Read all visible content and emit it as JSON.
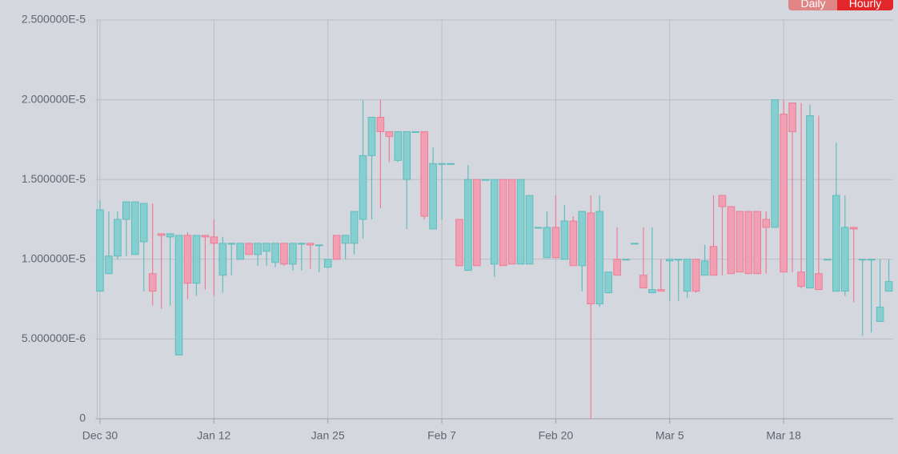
{
  "buttons": [
    "Daily",
    "Hourly"
  ],
  "chart_data": {
    "type": "candlestick",
    "up_color": "#86cfd0",
    "down_color": "#f0a0b2",
    "grid": true,
    "ylim": [
      0,
      2.5e-05
    ],
    "yticks": [
      0,
      {
        "value": 5e-06,
        "label": "5.000000E-6"
      },
      {
        "value": 1e-05,
        "label": "1.000000E-5"
      },
      {
        "value": 1.5e-05,
        "label": "1.500000E-5"
      },
      {
        "value": 2e-05,
        "label": "2.000000E-5"
      },
      {
        "value": 2.5e-05,
        "label": "2.500000E-5"
      }
    ],
    "categories": [
      "Dec 30",
      null,
      null,
      null,
      null,
      null,
      null,
      null,
      null,
      null,
      null,
      null,
      null,
      "Jan 12",
      null,
      null,
      null,
      null,
      null,
      null,
      null,
      null,
      null,
      null,
      null,
      null,
      "Jan 25",
      null,
      null,
      null,
      null,
      null,
      null,
      null,
      null,
      null,
      null,
      null,
      null,
      "Feb 7",
      null,
      null,
      null,
      null,
      null,
      null,
      null,
      null,
      null,
      null,
      null,
      null,
      "Feb 20",
      null,
      null,
      null,
      null,
      null,
      null,
      null,
      null,
      null,
      null,
      null,
      null,
      "Mar 5",
      null,
      null,
      null,
      null,
      null,
      null,
      null,
      null,
      null,
      null,
      null,
      null,
      "Mar 18",
      null,
      null,
      null,
      null,
      null,
      null,
      null,
      null,
      null,
      null,
      null,
      null
    ],
    "open": [
      8e-06,
      9.1e-06,
      1.02e-05,
      1.25e-05,
      1.03e-05,
      1.11e-05,
      9.1e-06,
      1.16e-05,
      1.14e-05,
      4e-06,
      1.15e-05,
      8.5e-06,
      1.15e-05,
      1.14e-05,
      9e-06,
      1.1e-05,
      1e-05,
      1.1e-05,
      1.03e-05,
      1.05e-05,
      9.8e-06,
      1.1e-05,
      9.7e-06,
      1.1e-05,
      1.1e-05,
      1.09e-05,
      9.5e-06,
      1.15e-05,
      1.1e-05,
      1.1e-05,
      1.25e-05,
      1.65e-05,
      1.89e-05,
      1.8e-05,
      1.62e-05,
      1.5e-05,
      1.8e-05,
      1.8e-05,
      1.19e-05,
      1.6e-05,
      1.6e-05,
      1.25e-05,
      9.3e-06,
      1.5e-05,
      1.5e-05,
      9.7e-06,
      1.5e-05,
      1.5e-05,
      9.7e-06,
      9.7e-06,
      1.2e-05,
      1.01e-05,
      1.2e-05,
      1e-05,
      1.24e-05,
      9.6e-06,
      1.29e-05,
      7.2e-06,
      7.9e-06,
      1e-05,
      1e-05,
      1.1e-05,
      9e-06,
      7.9e-06,
      8.1e-06,
      9.9e-06,
      1e-05,
      8e-06,
      1e-05,
      9e-06,
      1.08e-05,
      1.4e-05,
      1.33e-05,
      1.3e-05,
      1.3e-05,
      1.3e-05,
      1.25e-05,
      1.2e-05,
      1.91e-05,
      1.98e-05,
      9.2e-06,
      8.2e-06,
      9.1e-06,
      1e-05,
      8e-06,
      8e-06,
      1.2e-05,
      1e-05,
      1e-05,
      6.1e-06,
      8e-06
    ],
    "high": [
      1.37e-05,
      1.3e-05,
      1.3e-05,
      1.36e-05,
      1.36e-05,
      1.35e-05,
      1.35e-05,
      1.16e-05,
      1.16e-05,
      1.15e-05,
      1.17e-05,
      1.15e-05,
      1.15e-05,
      1.25e-05,
      1.14e-05,
      1.1e-05,
      1.1e-05,
      1.1e-05,
      1.1e-05,
      1.1e-05,
      1.1e-05,
      1.1e-05,
      1.1e-05,
      1.1e-05,
      1.1e-05,
      1.09e-05,
      1e-05,
      1.15e-05,
      1.15e-05,
      1.3e-05,
      2e-05,
      1.89e-05,
      2e-05,
      1.8e-05,
      1.8e-05,
      1.8e-05,
      1.8e-05,
      1.8e-05,
      1.7e-05,
      1.6e-05,
      1.6e-05,
      1.25e-05,
      1.59e-05,
      1.5e-05,
      1.5e-05,
      1.5e-05,
      1.5e-05,
      1.5e-05,
      1.5e-05,
      1.4e-05,
      1.2e-05,
      1.3e-05,
      1.4e-05,
      1.34e-05,
      1.27e-05,
      1.3e-05,
      1.4e-05,
      1.4e-05,
      9.2e-06,
      1.2e-05,
      1e-05,
      1.1e-05,
      1.2e-05,
      1.2e-05,
      1e-05,
      1e-05,
      1e-05,
      1e-05,
      1e-05,
      1.09e-05,
      1.4e-05,
      1.4e-05,
      1.33e-05,
      1.3e-05,
      1.3e-05,
      1.3e-05,
      1.3e-05,
      2e-05,
      2e-05,
      1.98e-05,
      1.98e-05,
      1.97e-05,
      1.9e-05,
      1e-05,
      1.73e-05,
      1.4e-05,
      1.2e-05,
      1e-05,
      1e-05,
      1e-05,
      1e-05
    ],
    "low": [
      8e-06,
      9.1e-06,
      1e-05,
      1.02e-05,
      1.03e-05,
      8e-06,
      7.1e-06,
      6.9e-06,
      7.1e-06,
      4e-06,
      7.5e-06,
      7.7e-06,
      8.1e-06,
      7.7e-06,
      7.9e-06,
      9e-06,
      1e-05,
      1.03e-05,
      9.6e-06,
      9.6e-06,
      9.5e-06,
      9.6e-06,
      9.3e-06,
      9.3e-06,
      9.4e-06,
      9.2e-06,
      9.5e-06,
      1e-05,
      1e-05,
      1.03e-05,
      1.13e-05,
      1.25e-05,
      1.32e-05,
      1.61e-05,
      1.61e-05,
      1.19e-05,
      1.8e-05,
      1.25e-05,
      1.19e-05,
      1.25e-05,
      1.6e-05,
      9.6e-06,
      9.3e-06,
      9.6e-06,
      1.5e-05,
      8.9e-06,
      9.6e-06,
      9.7e-06,
      9.7e-06,
      9.7e-06,
      1.2e-05,
      1.01e-05,
      1.01e-05,
      1e-05,
      9.6e-06,
      8e-06,
      0,
      7e-06,
      7.9e-06,
      9e-06,
      1e-05,
      1.1e-05,
      8.2e-06,
      7.9e-06,
      8e-06,
      7.4e-06,
      7.4e-06,
      7.6e-06,
      7.9e-06,
      9e-06,
      9e-06,
      9e-06,
      9.1e-06,
      9.2e-06,
      9.1e-06,
      9.1e-06,
      9.1e-06,
      1.2e-05,
      9.2e-06,
      9.2e-06,
      8.2e-06,
      8.2e-06,
      8.1e-06,
      1e-05,
      8e-06,
      7.7e-06,
      7.3e-06,
      5.2e-06,
      5.4e-06,
      6.1e-06,
      8e-06
    ],
    "close": [
      1.31e-05,
      1.02e-05,
      1.25e-05,
      1.36e-05,
      1.36e-05,
      1.35e-05,
      8e-06,
      1.15e-05,
      1.16e-05,
      1.15e-05,
      8.5e-06,
      1.15e-05,
      1.14e-05,
      1.1e-05,
      1.1e-05,
      1.1e-05,
      1.1e-05,
      1.03e-05,
      1.1e-05,
      1.1e-05,
      1.1e-05,
      9.7e-06,
      1.1e-05,
      1.1e-05,
      1.09e-05,
      1.09e-05,
      1e-05,
      1e-05,
      1.15e-05,
      1.3e-05,
      1.65e-05,
      1.89e-05,
      1.8e-05,
      1.77e-05,
      1.8e-05,
      1.8e-05,
      1.8e-05,
      1.27e-05,
      1.6e-05,
      1.6e-05,
      1.6e-05,
      9.6e-06,
      1.5e-05,
      9.6e-06,
      1.5e-05,
      1.5e-05,
      9.6e-06,
      9.7e-06,
      1.5e-05,
      1.4e-05,
      1.2e-05,
      1.2e-05,
      1.01e-05,
      1.24e-05,
      9.6e-06,
      1.3e-05,
      7.2e-06,
      1.3e-05,
      9.2e-06,
      9e-06,
      1e-05,
      1.1e-05,
      8.2e-06,
      8.1e-06,
      8e-06,
      1e-05,
      1e-05,
      1e-05,
      8e-06,
      9.9e-06,
      9e-06,
      1.33e-05,
      9.1e-06,
      9.2e-06,
      9.1e-06,
      9.1e-06,
      1.2e-05,
      2e-05,
      9.2e-06,
      1.8e-05,
      8.3e-06,
      1.9e-05,
      8.1e-06,
      1e-05,
      1.4e-05,
      1.2e-05,
      1.19e-05,
      1e-05,
      1e-05,
      7e-06,
      8.6e-06
    ]
  }
}
